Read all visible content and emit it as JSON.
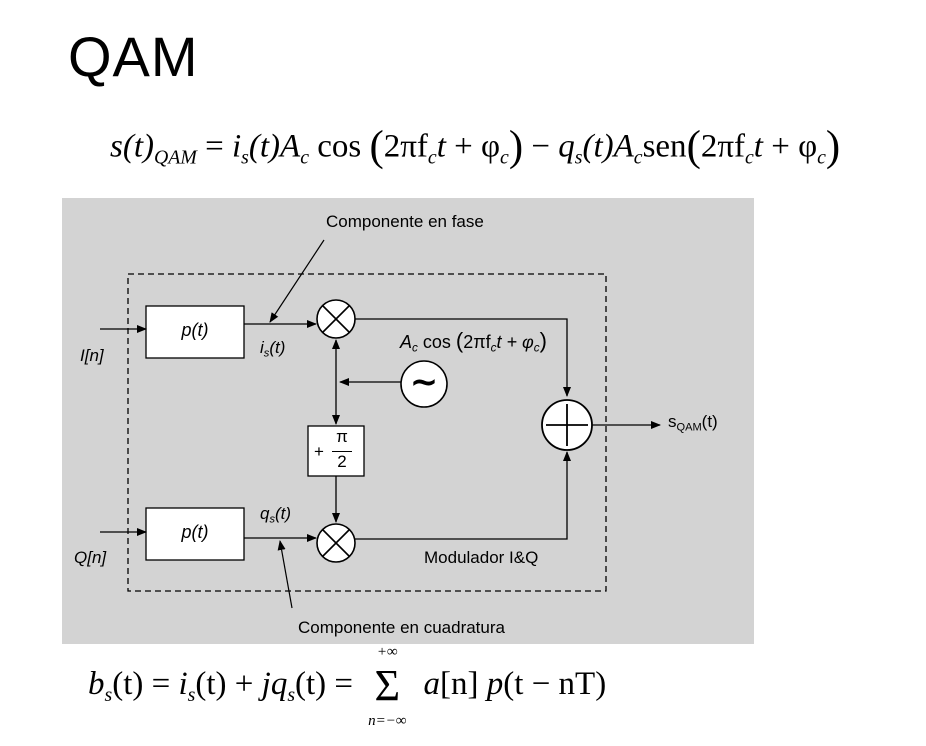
{
  "title": "QAM",
  "formula_top": {
    "lhs": "s(t)",
    "lhs_sub": "QAM",
    "eq": "=",
    "i": "i",
    "s_sub": "s",
    "t": "(t)",
    "A": "A",
    "c_sub": "c",
    "cos": "cos",
    "sen": "sen",
    "arg_open": "(",
    "arg_close": ")",
    "two_pi_f": "2πf",
    "t_var": "t",
    "plus": "+",
    "phi": "φ",
    "minus": "−",
    "q": "q"
  },
  "diagram": {
    "component_phase": "Componente en fase",
    "component_quadrature": "Componente en cuadratura",
    "input_i": "I[n]",
    "input_q": "Q[n]",
    "pulse_filter_label": "p(t)",
    "is_label_main": "i",
    "is_label_sub": "s",
    "is_label_tail": "(t)",
    "qs_label_main": "q",
    "qs_label_sub": "s",
    "qs_label_tail": "(t)",
    "carrier_label_A": "A",
    "carrier_label_c": "c",
    "carrier_label_rest": " cos",
    "carrier_paren_open": "(",
    "carrier_arg": "2πf",
    "carrier_arg_sub": "c",
    "carrier_t": "t + φ",
    "carrier_phi_sub": "c",
    "carrier_paren_close": ")",
    "phase_shift_plus": "+",
    "phase_shift_num": "π",
    "phase_shift_den": "2",
    "output_label_main": "s",
    "output_label_sub": "QAM",
    "output_label_tail": "(t)",
    "modulator_label": "Modulador I&Q",
    "oscillator_symbol": "~"
  },
  "formula_bottom": {
    "b": "b",
    "s_sub": "s",
    "t": "(t)",
    "eq": "=",
    "i": "i",
    "plus": "+",
    "j": "j",
    "q": "q",
    "sum_top": "+∞",
    "sum_bottom": "n=−∞",
    "sigma": "Σ",
    "a": "a",
    "n_bracket": "[n]",
    "p": "p",
    "arg": "(t − nT)"
  }
}
